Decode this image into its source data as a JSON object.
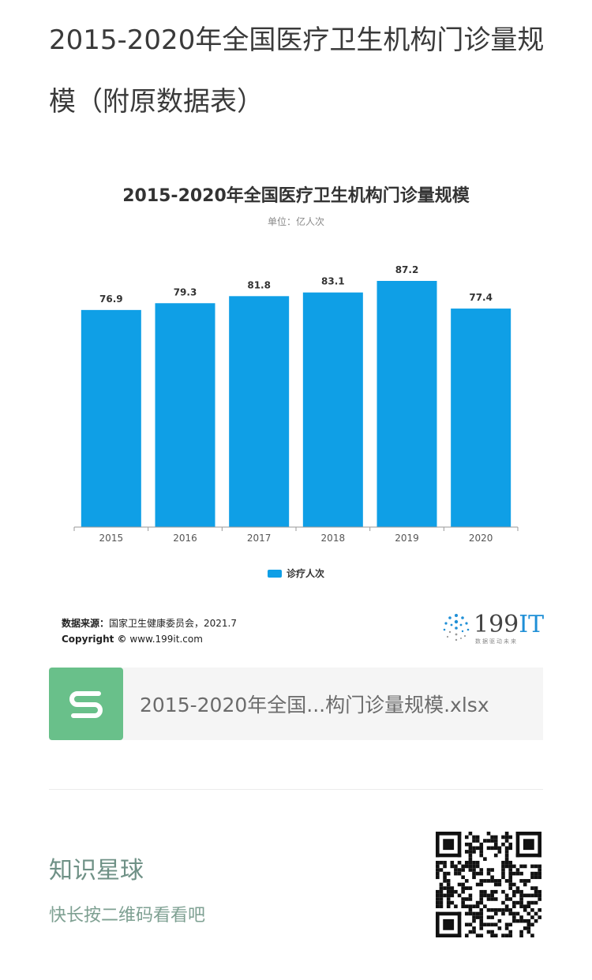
{
  "article": {
    "title": "2015-2020年全国医疗卫生机构门诊量规模（附原数据表）"
  },
  "chart_data": {
    "type": "bar",
    "title": "2015-2020年全国医疗卫生机构门诊量规模",
    "unit": "单位：亿人次",
    "categories": [
      "2015",
      "2016",
      "2017",
      "2018",
      "2019",
      "2020"
    ],
    "series": [
      {
        "name": "诊疗人次",
        "values": [
          76.9,
          79.3,
          81.8,
          83.1,
          87.2,
          77.4
        ]
      }
    ],
    "data_labels": [
      "76.9",
      "79.3",
      "81.8",
      "83.1",
      "87.2",
      "77.4"
    ],
    "ylim": [
      0,
      87.2
    ],
    "grid": false,
    "legend": "bottom",
    "color": "#0f9fe6"
  },
  "source": {
    "label": "数据来源：",
    "text": "国家卫生健康委员会，2021.7",
    "copyright_label": "Copyright ©",
    "copyright_text": "www.199it.com"
  },
  "logo": {
    "name_prefix": "199",
    "name_suffix": "IT",
    "tagline": "数据驱动未来"
  },
  "attachment": {
    "icon": "spreadsheet-icon",
    "file_name": "2015-2020年全国...构门诊量规模.xlsx"
  },
  "promo": {
    "title": "知识星球",
    "subtitle": "快长按二维码看看吧",
    "qr_icon": "qr-code-icon"
  }
}
